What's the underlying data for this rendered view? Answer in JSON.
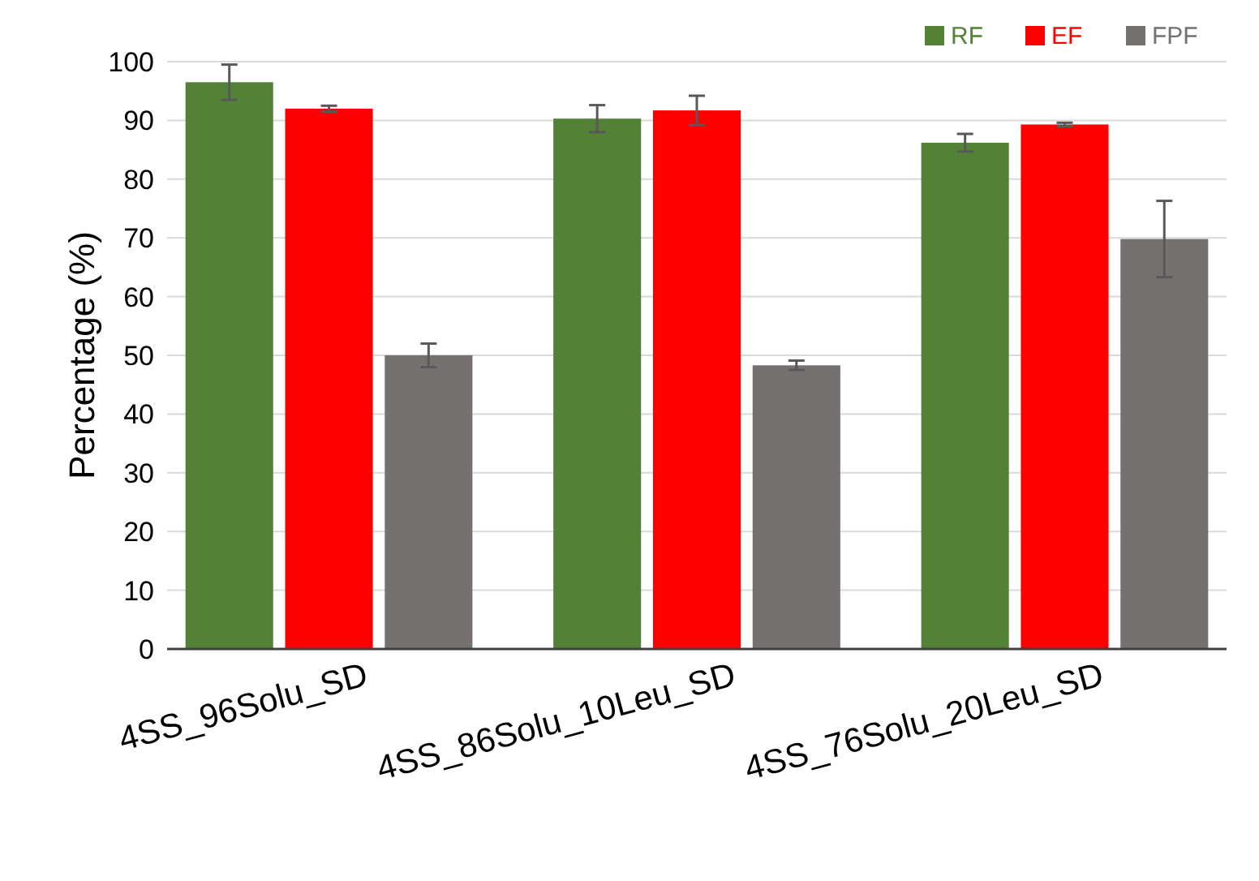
{
  "chart_data": {
    "type": "bar",
    "ylabel": "Percentage (%)",
    "categories": [
      "4SS_96Solu_SD",
      "4SS_86Solu_10Leu_SD",
      "4SS_76Solu_20Leu_SD"
    ],
    "series": [
      {
        "name": "RF",
        "color": "#538135",
        "values": [
          96.5,
          90.3,
          86.2
        ],
        "errors": [
          3,
          2.3,
          1.5
        ]
      },
      {
        "name": "EF",
        "color": "#ff0000",
        "values": [
          92,
          91.7,
          89.3
        ],
        "errors": [
          0.5,
          2.5,
          0.3
        ]
      },
      {
        "name": "FPF",
        "color": "#767171",
        "values": [
          50,
          48.3,
          69.8
        ],
        "errors": [
          2,
          0.8,
          6.5
        ]
      }
    ],
    "ylim": [
      0,
      100
    ],
    "yticks": [
      0,
      10,
      20,
      30,
      40,
      50,
      60,
      70,
      80,
      90,
      100
    ],
    "grid": "y",
    "legend": "top right"
  }
}
